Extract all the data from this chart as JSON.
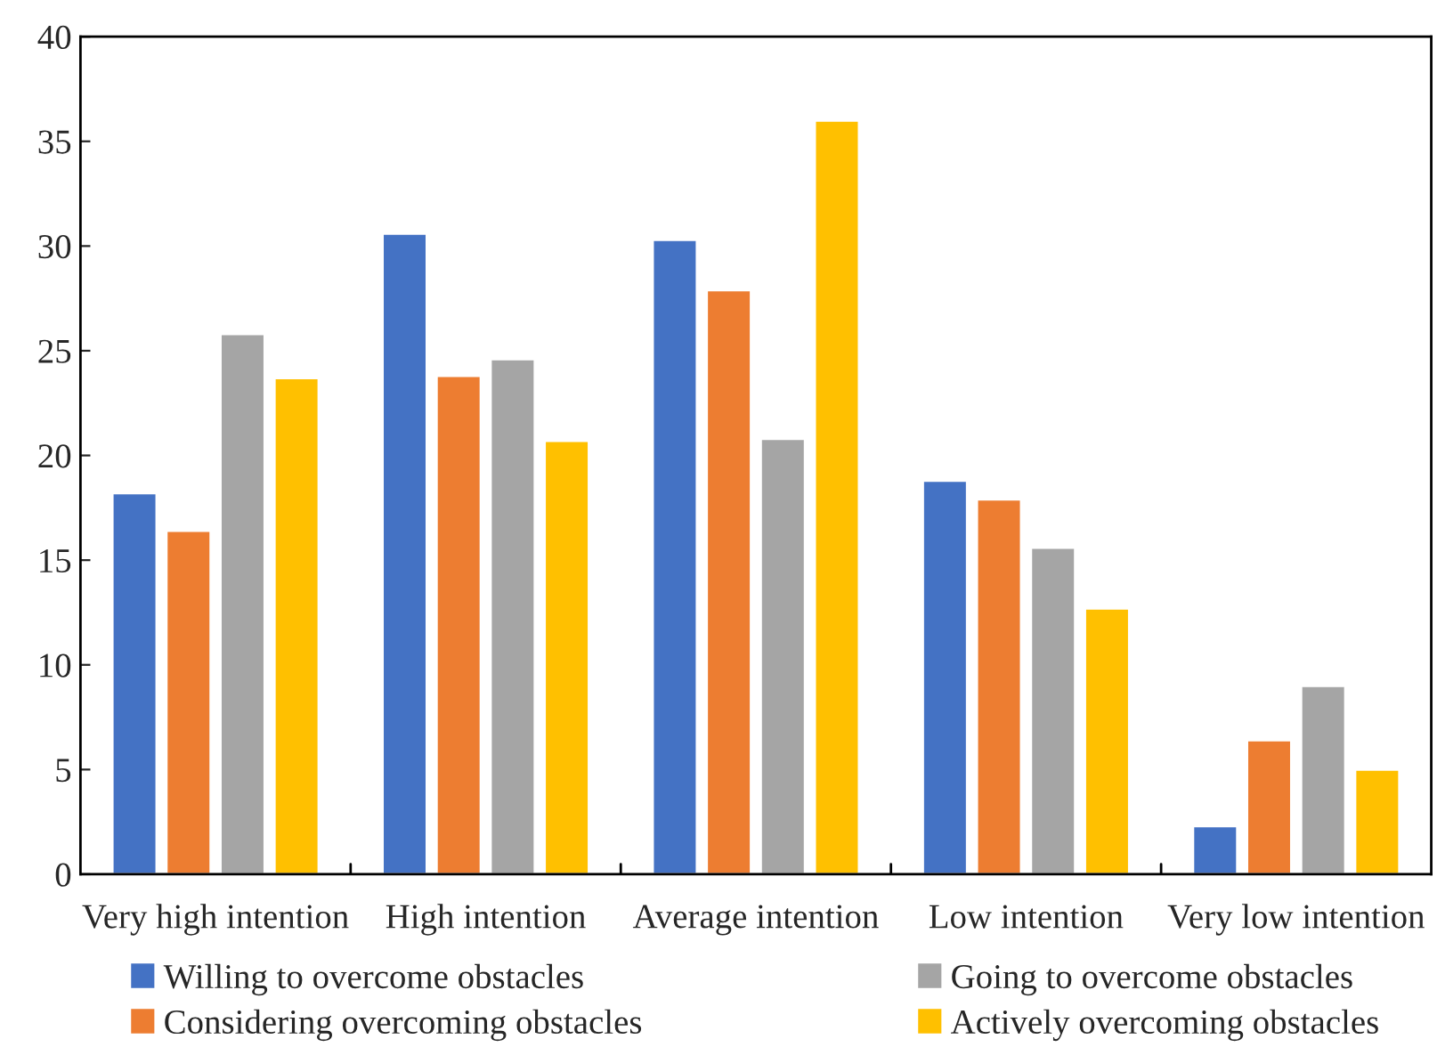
{
  "chart_data": {
    "type": "bar",
    "categories": [
      "Very high intention",
      "High intention",
      "Average intention",
      "Low intention",
      "Very low intention"
    ],
    "series": [
      {
        "name": "Willing to overcome obstacles",
        "color": "#4472c4",
        "values": [
          18.2,
          30.6,
          30.3,
          18.8,
          2.3
        ]
      },
      {
        "name": "Considering overcoming obstacles",
        "color": "#ed7d31",
        "values": [
          16.4,
          23.8,
          27.9,
          17.9,
          6.4
        ]
      },
      {
        "name": "Going to overcome obstacles",
        "color": "#a5a5a5",
        "values": [
          25.8,
          24.6,
          20.8,
          15.6,
          9.0
        ]
      },
      {
        "name": "Actively overcoming obstacles",
        "color": "#ffc000",
        "values": [
          23.7,
          20.7,
          36.0,
          12.7,
          5.0
        ]
      }
    ],
    "ylim": [
      0,
      40
    ],
    "yticks": [
      0,
      5,
      10,
      15,
      20,
      25,
      30,
      35,
      40
    ],
    "grid": false,
    "legend": "bottom"
  }
}
